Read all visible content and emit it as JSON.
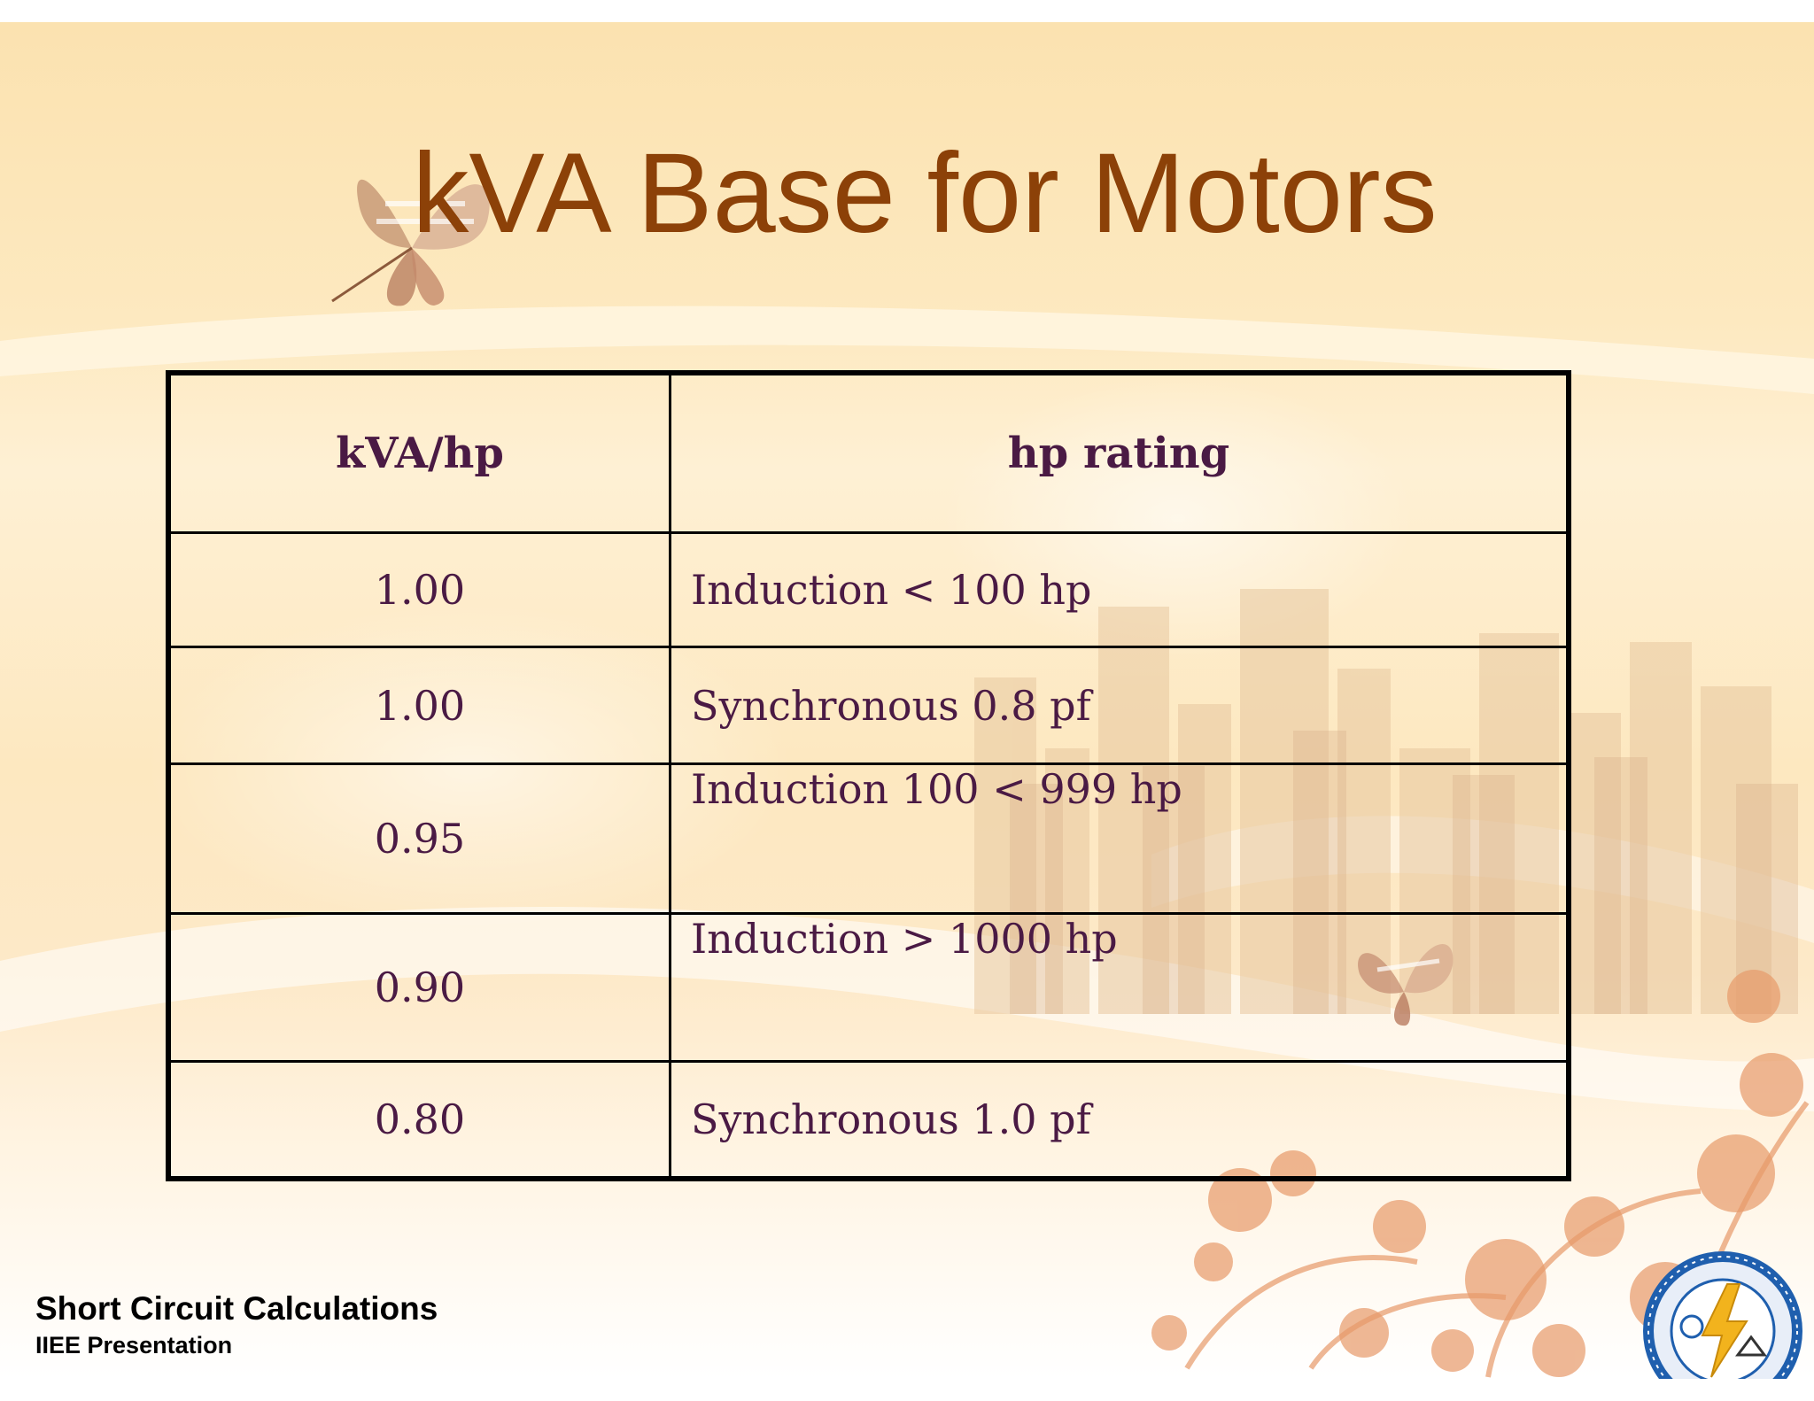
{
  "slide": {
    "title": "kVA Base for Motors",
    "colors": {
      "title": "#8c4108",
      "table_text": "#4a1a44",
      "background": "#fde9c0",
      "footer_text": "#000000"
    }
  },
  "table": {
    "headers": [
      "kVA/hp",
      "hp rating"
    ],
    "rows": [
      {
        "kva_per_hp": "1.00",
        "hp_rating": "Induction < 100 hp"
      },
      {
        "kva_per_hp": "1.00",
        "hp_rating": "Synchronous 0.8 pf"
      },
      {
        "kva_per_hp": "0.95",
        "hp_rating": "Induction 100 < 999 hp"
      },
      {
        "kva_per_hp": "0.90",
        "hp_rating": "Induction > 1000 hp"
      },
      {
        "kva_per_hp": "0.80",
        "hp_rating": "Synchronous 1.0 pf"
      }
    ]
  },
  "footer": {
    "title": "Short Circuit Calculations",
    "subtitle": "IIEE Presentation"
  },
  "decorations": {
    "icons": [
      "butterfly-icon",
      "city-skyline-illustration",
      "floral-pattern-illustration",
      "iiee-logo-icon"
    ]
  }
}
